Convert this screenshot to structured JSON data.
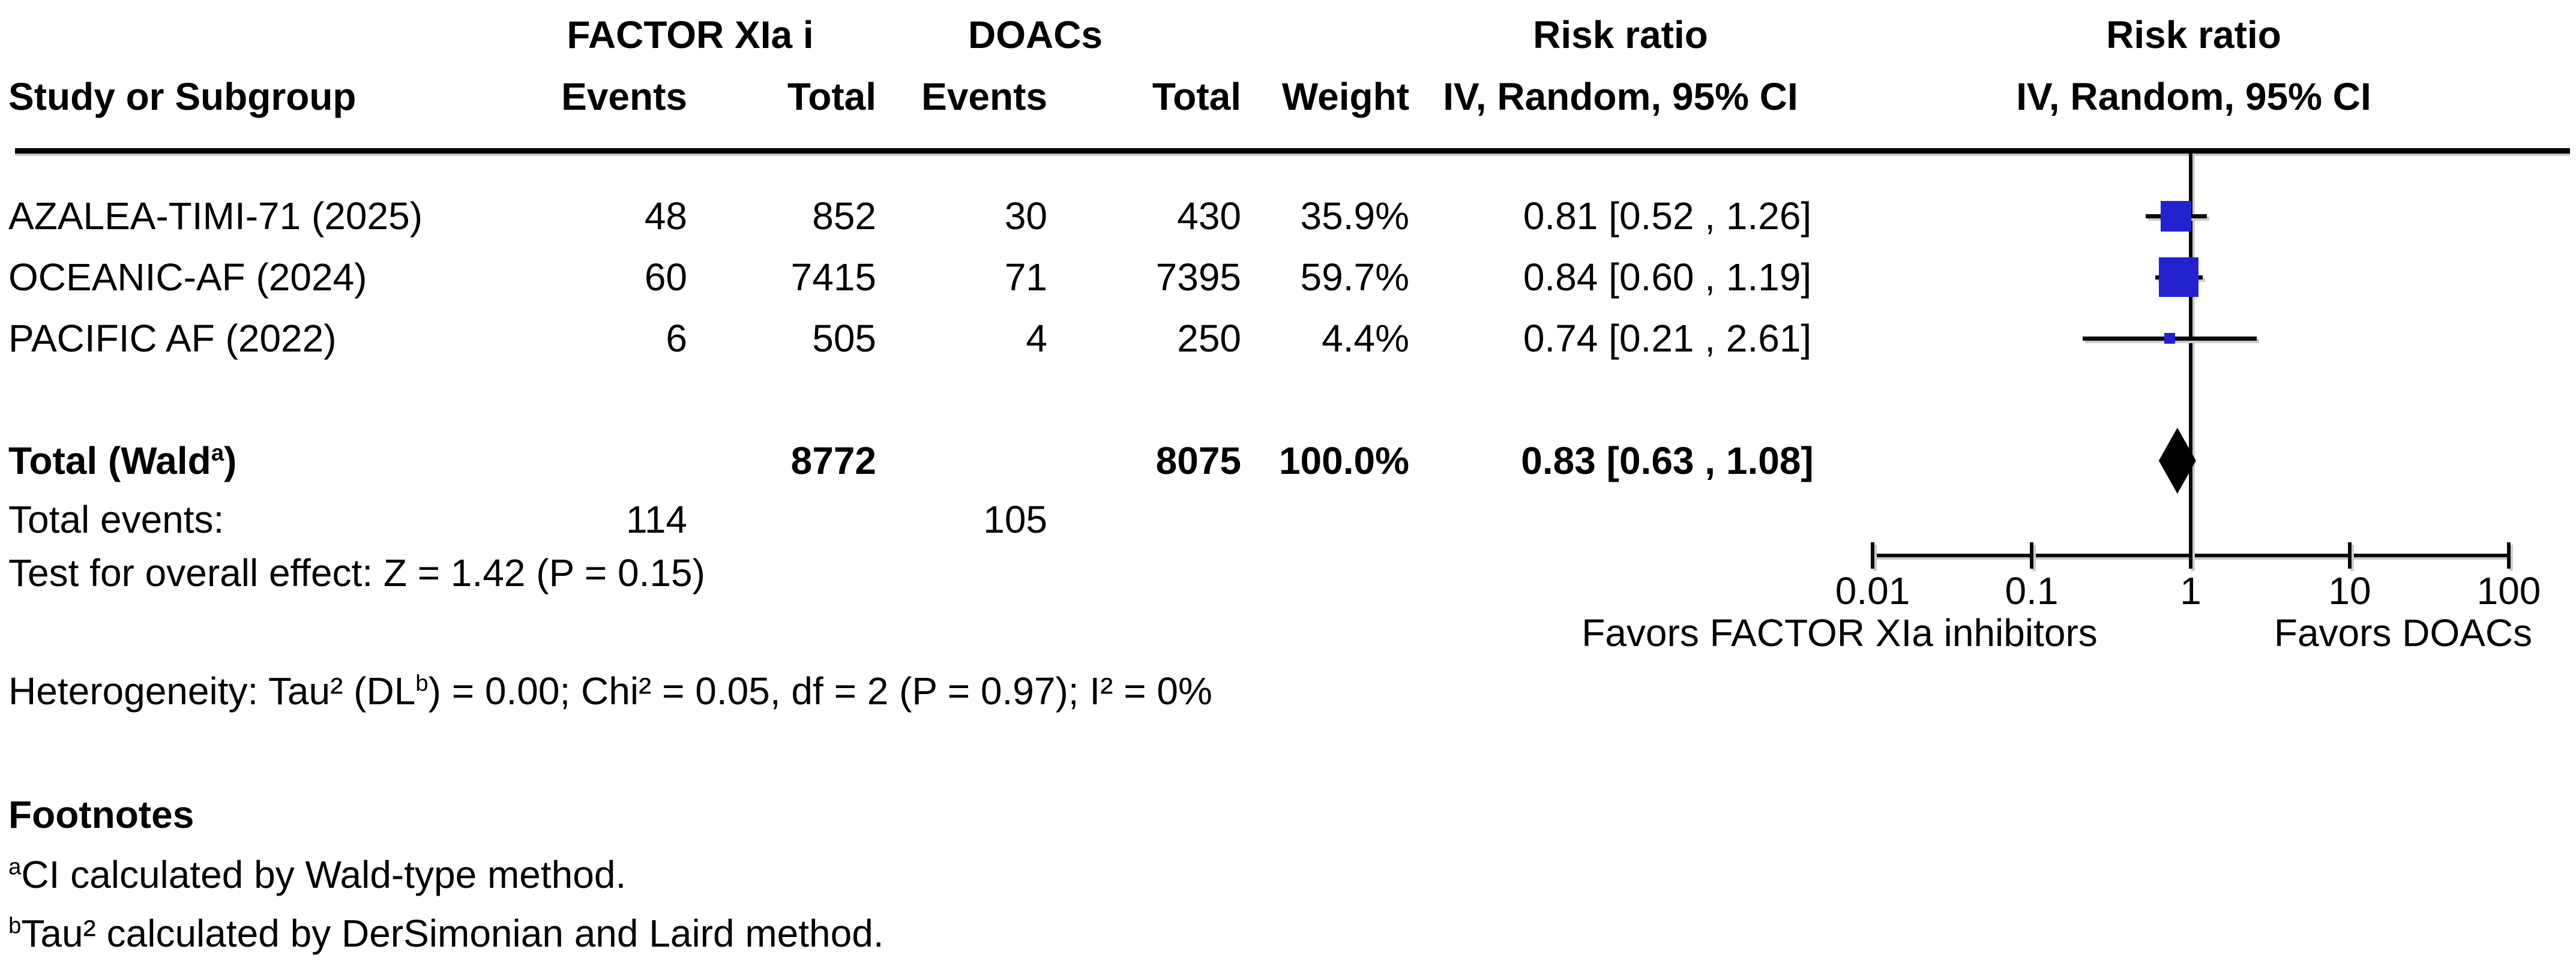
{
  "header": {
    "group_experimental": "FACTOR XIa i",
    "group_control": "DOACs",
    "col_study": "Study or Subgroup",
    "col_events_exp": "Events",
    "col_total_exp": "Total",
    "col_events_ctrl": "Events",
    "col_total_ctrl": "Total",
    "col_weight": "Weight",
    "risk_ratio_table": "Risk ratio",
    "method_table": "IV, Random, 95% CI",
    "risk_ratio_plot": "Risk ratio",
    "method_plot": "IV, Random, 95% CI"
  },
  "footnotes": {
    "title": "Footnotes",
    "a_sup": "a",
    "a_text": "CI calculated by Wald-type method.",
    "b_sup": "b",
    "b_text": "Tau² calculated by DerSimonian and Laird method."
  },
  "colors": {
    "marker_blue": "#2222ce",
    "diamond_black": "#000000",
    "line_black": "#0a0a0a"
  },
  "chart_data": {
    "type": "forest",
    "effect_measure": "Risk ratio",
    "model": "IV, Random, 95% CI",
    "x_scale": "log10",
    "x_range": [
      0.01,
      100
    ],
    "axis_ticks": [
      "0.01",
      "0.1",
      "1",
      "10",
      "100"
    ],
    "favors_left": "Favors FACTOR XIa inhibitors",
    "favors_right": "Favors DOACs",
    "marker_color": "#2222ce",
    "studies": [
      {
        "name": "AZALEA-TIMI-71 (2025)",
        "events_exp": "48",
        "total_exp": "852",
        "events_ctrl": "30",
        "total_ctrl": "430",
        "weight": "35.9%",
        "weight_pct": 35.9,
        "rr": 0.81,
        "ci_low": 0.52,
        "ci_high": 1.26,
        "ci_text": "0.81 [0.52 , 1.26]"
      },
      {
        "name": "OCEANIC-AF (2024)",
        "events_exp": "60",
        "total_exp": "7415",
        "events_ctrl": "71",
        "total_ctrl": "7395",
        "weight": "59.7%",
        "weight_pct": 59.7,
        "rr": 0.84,
        "ci_low": 0.6,
        "ci_high": 1.19,
        "ci_text": "0.84 [0.60 , 1.19]"
      },
      {
        "name": "PACIFIC AF (2022)",
        "events_exp": "6",
        "total_exp": "505",
        "events_ctrl": "4",
        "total_ctrl": "250",
        "weight": "4.4%",
        "weight_pct": 4.4,
        "rr": 0.74,
        "ci_low": 0.21,
        "ci_high": 2.61,
        "ci_text": "0.74 [0.21 , 2.61]"
      }
    ],
    "total": {
      "label_pre": "Total (Wald",
      "label_sup": "a",
      "label_post": ")",
      "total_exp": "8772",
      "total_ctrl": "8075",
      "weight": "100.0%",
      "rr": 0.83,
      "ci_low": 0.63,
      "ci_high": 1.08,
      "ci_text": "0.83 [0.63 , 1.08]"
    },
    "total_events": {
      "label": "Total events:",
      "exp": "114",
      "ctrl": "105"
    },
    "overall_effect_test": "Test for overall effect: Z = 1.42 (P = 0.15)",
    "heterogeneity_pre": "Heterogeneity: Tau² (DL",
    "heterogeneity_sup": "b",
    "heterogeneity_post": ") = 0.00; Chi² = 0.05, df = 2 (P = 0.97); I² = 0%"
  }
}
